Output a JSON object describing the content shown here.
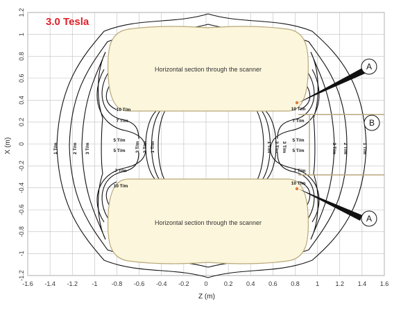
{
  "title": "3.0 Tesla",
  "axes": {
    "xlabel": "Z (m)",
    "ylabel": "X (m)",
    "z_ticks": [
      "-1.6",
      "-1.4",
      "-1.2",
      "-1",
      "-0.8",
      "-0.6",
      "-0.4",
      "-0.2",
      "0",
      "0.2",
      "0.4",
      "0.6",
      "0.8",
      "1",
      "1.2",
      "1.4",
      "1.6"
    ],
    "x_ticks": [
      "1.2",
      "1",
      "0.8",
      "0.6",
      "0.4",
      "0.2",
      "0",
      "-0.2",
      "-0.4",
      "-0.6",
      "-0.8",
      "-1",
      "-1.2"
    ]
  },
  "sections": {
    "top": "Horizontal section through the scanner",
    "bottom": "Horizontal section through the scanner"
  },
  "contour_labels": {
    "left_1": "1 T/m",
    "left_2": "2 T/m",
    "left_3": "3 T/m",
    "right_3": "3 T/m",
    "right_2": "2 T/m",
    "right_1": "1 T/m",
    "inner_left_10_top": "10 T/m",
    "inner_left_7_top": "7 T/m",
    "inner_left_5_a": "5 T/m",
    "inner_left_5_b": "5 T/m",
    "inner_left_7_bot": "7 T/m",
    "inner_left_10_bot": "10 T/m",
    "inner_right_10_top": "10 T/m",
    "inner_right_7_top": "7 T/m",
    "inner_right_5_a": "5 T/m",
    "inner_right_5_b": "5 T/m",
    "inner_right_7_bot": "7 T/m",
    "inner_right_10_bot": "10 T/m",
    "center_left_3": "3 T/m",
    "center_left_2": "2 T/m",
    "center_left_1": "1 T/m",
    "center_right_1": "1 T/m",
    "center_right_2": "2 T/m",
    "center_right_3": "3 T/m"
  },
  "callouts": {
    "a_top": "A",
    "b": "B",
    "a_bottom": "A"
  },
  "colors": {
    "section_fill": "#fbf6dc",
    "section_stroke": "#b8a878",
    "grid": "#bdbdbd",
    "contour": "#111111",
    "title": "#e0222b",
    "marker": "#e07a3a",
    "bracket": "#b7a67a"
  }
}
